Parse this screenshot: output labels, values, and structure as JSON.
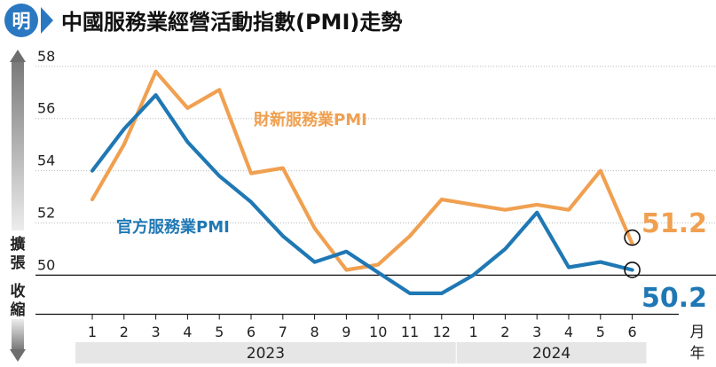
{
  "logo": {
    "text": "明"
  },
  "chart_data": {
    "type": "line",
    "title": "中國服務業經營活動指數(PMI)走勢",
    "x_unit_label": [
      "月",
      "年"
    ],
    "categories": [
      "1",
      "2",
      "3",
      "4",
      "5",
      "6",
      "7",
      "8",
      "9",
      "10",
      "11",
      "12",
      "1",
      "2",
      "3",
      "4",
      "5",
      "6"
    ],
    "years": [
      {
        "label": "2023",
        "months": 12
      },
      {
        "label": "2024",
        "months": 6
      }
    ],
    "ylim": [
      48.5,
      58.3
    ],
    "yticks": [
      50,
      52,
      54,
      56,
      58
    ],
    "threshold": 50,
    "side_labels": {
      "expand": [
        "擴",
        "張"
      ],
      "contract": [
        "收",
        "縮"
      ]
    },
    "series": [
      {
        "name": "財新服務業PMI",
        "color": "#f0a050",
        "values": [
          52.9,
          55.0,
          57.8,
          56.4,
          57.1,
          53.9,
          54.1,
          51.8,
          50.2,
          50.4,
          51.5,
          52.9,
          52.7,
          52.5,
          52.7,
          52.5,
          54.0,
          51.2
        ],
        "end_label": "51.2"
      },
      {
        "name": "官方服務業PMI",
        "color": "#1f78b4",
        "values": [
          54.0,
          55.6,
          56.9,
          55.1,
          53.8,
          52.8,
          51.5,
          50.5,
          50.9,
          50.1,
          49.3,
          49.3,
          50.0,
          51.0,
          52.4,
          50.3,
          50.5,
          50.2
        ],
        "end_label": "50.2"
      }
    ],
    "grid": true
  }
}
